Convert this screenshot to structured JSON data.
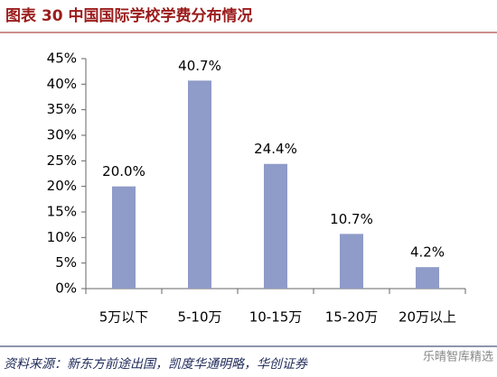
{
  "chart_data": {
    "type": "bar",
    "title": "图表 30 中国国际学校学费分布情况",
    "categories": [
      "5万以下",
      "5-10万",
      "10-15万",
      "15-20万",
      "20万以上"
    ],
    "values": [
      20.0,
      40.7,
      24.4,
      10.7,
      4.2
    ],
    "value_labels": [
      "20.0%",
      "40.7%",
      "24.4%",
      "10.7%",
      "4.2%"
    ],
    "color": "#8f9bc8",
    "ylim": [
      0,
      45
    ],
    "yticks": [
      {
        "value": 0,
        "label": "0%"
      },
      {
        "value": 5,
        "label": "5%"
      },
      {
        "value": 10,
        "label": "10%"
      },
      {
        "value": 15,
        "label": "15%"
      },
      {
        "value": 20,
        "label": "20%"
      },
      {
        "value": 25,
        "label": "25%"
      },
      {
        "value": 30,
        "label": "30%"
      },
      {
        "value": 35,
        "label": "35%"
      },
      {
        "value": 40,
        "label": "40%"
      },
      {
        "value": 45,
        "label": "45%"
      }
    ],
    "grid": false,
    "source": "资料来源：新东方前途出国，凯度华通明略，华创证券",
    "watermark": "乐晴智库精选"
  }
}
